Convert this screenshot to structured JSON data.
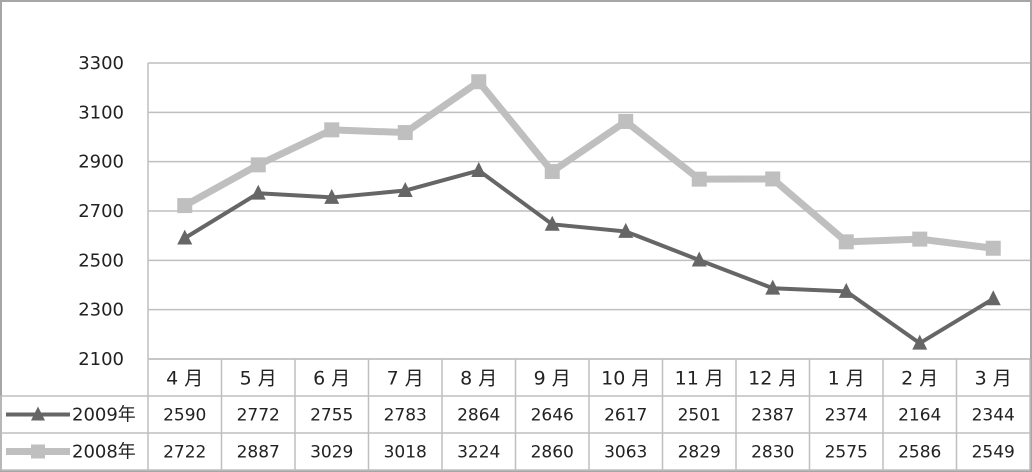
{
  "chart_data": {
    "type": "line",
    "title": "",
    "xlabel": "",
    "ylabel": "",
    "ylim": [
      2100,
      3300
    ],
    "yticks": [
      2100,
      2300,
      2500,
      2700,
      2900,
      3100,
      3300
    ],
    "grid": true,
    "legend": "table-left",
    "categories": [
      "4 月",
      "5 月",
      "6 月",
      "7 月",
      "8 月",
      "9 月",
      "10 月",
      "11 月",
      "12 月",
      "1 月",
      "2 月",
      "3 月"
    ],
    "series": [
      {
        "name": "2009年",
        "marker": "triangle",
        "color": "#666666",
        "values": [
          2590,
          2772,
          2755,
          2783,
          2864,
          2646,
          2617,
          2501,
          2387,
          2374,
          2164,
          2344
        ]
      },
      {
        "name": "2008年",
        "marker": "square",
        "color": "#bfbfbf",
        "values": [
          2722,
          2887,
          3029,
          3018,
          3224,
          2860,
          3063,
          2829,
          2830,
          2575,
          2586,
          2549
        ]
      }
    ]
  },
  "colors": {
    "grid": "#bfbfbf",
    "border": "#999999"
  }
}
